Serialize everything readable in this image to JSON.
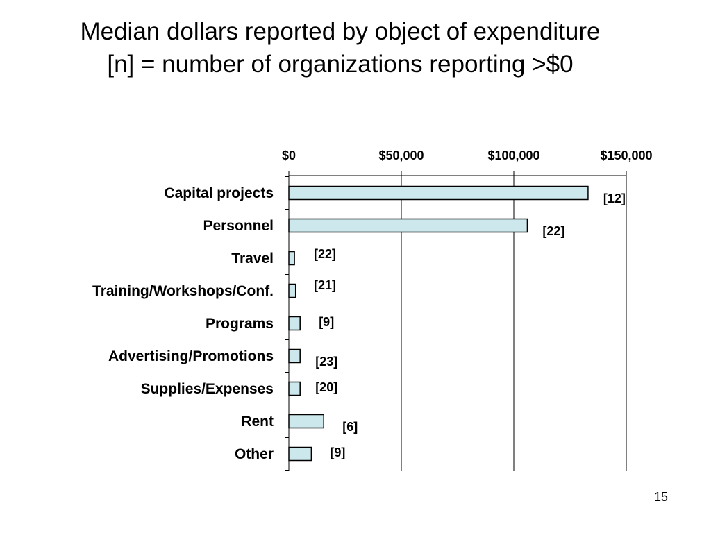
{
  "title_lines": [
    "Median dollars reported by object of expenditure",
    "[n] = number of organizations reporting >$0"
  ],
  "page_number": "15",
  "colors": {
    "bar_fill": "#cce8ec",
    "bar_stroke": "#000000",
    "gridline": "#000000"
  },
  "chart_data": {
    "type": "bar",
    "orientation": "horizontal",
    "categories": [
      "Capital projects",
      "Personnel",
      "Travel",
      "Training/Workshops/Conf.",
      "Programs",
      "Advertising/Promotions",
      "Supplies/Expenses",
      "Rent",
      "Other"
    ],
    "values": [
      133000,
      106000,
      2500,
      3000,
      5000,
      5000,
      5000,
      15500,
      10000
    ],
    "n_labels": [
      "[12]",
      "[22]",
      "[22]",
      "[21]",
      "[9]",
      "[23]",
      "[20]",
      "[6]",
      "[9]"
    ],
    "x_ticks": [
      0,
      50000,
      100000,
      150000
    ],
    "x_tick_labels": [
      "$0",
      "$50,000",
      "$100,000",
      "$150,000"
    ],
    "xlim": [
      0,
      150000
    ],
    "x_axis_position": "top",
    "grid": "vertical major gridlines",
    "legend": "none"
  }
}
